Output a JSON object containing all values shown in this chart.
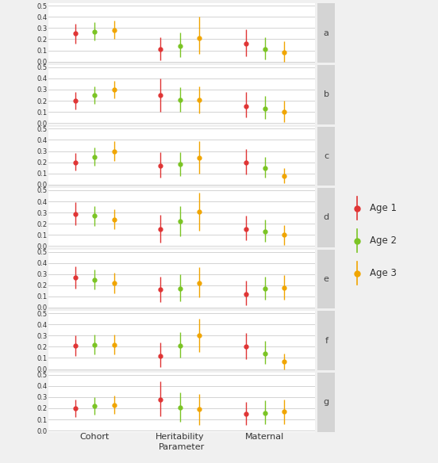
{
  "panels": [
    "a",
    "b",
    "c",
    "d",
    "e",
    "f",
    "g"
  ],
  "x_positions": {
    "Cohort": [
      1,
      1.5,
      2.0
    ],
    "Heritability": [
      3.2,
      3.7,
      4.2
    ],
    "Maternal": [
      5.4,
      5.9,
      6.4
    ]
  },
  "x_ticks": [
    1.5,
    3.7,
    5.9
  ],
  "x_tick_labels": [
    "Cohort",
    "Heritability",
    "Maternal"
  ],
  "ylim": [
    -0.01,
    0.52
  ],
  "yticks": [
    0.0,
    0.1,
    0.2,
    0.3,
    0.4,
    0.5
  ],
  "colors": [
    "#e03535",
    "#7bc424",
    "#f0a500"
  ],
  "age_labels": [
    "Age 1",
    "Age 2",
    "Age 3"
  ],
  "data": {
    "a": {
      "Cohort": {
        "mean": [
          0.25,
          0.27,
          0.28
        ],
        "lo": [
          0.16,
          0.19,
          0.2
        ],
        "hi": [
          0.34,
          0.35,
          0.37
        ]
      },
      "Heritability": {
        "mean": [
          0.11,
          0.14,
          0.21
        ],
        "lo": [
          0.01,
          0.04,
          0.07
        ],
        "hi": [
          0.22,
          0.26,
          0.4
        ]
      },
      "Maternal": {
        "mean": [
          0.16,
          0.11,
          0.08
        ],
        "lo": [
          0.05,
          0.02,
          0.0
        ],
        "hi": [
          0.29,
          0.22,
          0.18
        ]
      }
    },
    "b": {
      "Cohort": {
        "mean": [
          0.2,
          0.25,
          0.3
        ],
        "lo": [
          0.12,
          0.17,
          0.22
        ],
        "hi": [
          0.28,
          0.33,
          0.38
        ]
      },
      "Heritability": {
        "mean": [
          0.25,
          0.21,
          0.21
        ],
        "lo": [
          0.1,
          0.1,
          0.09
        ],
        "hi": [
          0.4,
          0.32,
          0.33
        ]
      },
      "Maternal": {
        "mean": [
          0.15,
          0.13,
          0.1
        ],
        "lo": [
          0.05,
          0.04,
          0.01
        ],
        "hi": [
          0.28,
          0.24,
          0.2
        ]
      }
    },
    "c": {
      "Cohort": {
        "mean": [
          0.2,
          0.25,
          0.3
        ],
        "lo": [
          0.13,
          0.17,
          0.21
        ],
        "hi": [
          0.28,
          0.33,
          0.39
        ]
      },
      "Heritability": {
        "mean": [
          0.17,
          0.18,
          0.24
        ],
        "lo": [
          0.06,
          0.08,
          0.1
        ],
        "hi": [
          0.29,
          0.29,
          0.39
        ]
      },
      "Maternal": {
        "mean": [
          0.2,
          0.15,
          0.08
        ],
        "lo": [
          0.09,
          0.06,
          0.01
        ],
        "hi": [
          0.32,
          0.25,
          0.15
        ]
      }
    },
    "d": {
      "Cohort": {
        "mean": [
          0.29,
          0.27,
          0.24
        ],
        "lo": [
          0.19,
          0.18,
          0.15
        ],
        "hi": [
          0.39,
          0.36,
          0.33
        ]
      },
      "Heritability": {
        "mean": [
          0.15,
          0.22,
          0.31
        ],
        "lo": [
          0.03,
          0.09,
          0.14
        ],
        "hi": [
          0.28,
          0.36,
          0.48
        ]
      },
      "Maternal": {
        "mean": [
          0.15,
          0.13,
          0.1
        ],
        "lo": [
          0.05,
          0.04,
          0.01
        ],
        "hi": [
          0.27,
          0.24,
          0.19
        ]
      }
    },
    "e": {
      "Cohort": {
        "mean": [
          0.27,
          0.25,
          0.22
        ],
        "lo": [
          0.17,
          0.16,
          0.13
        ],
        "hi": [
          0.37,
          0.34,
          0.31
        ]
      },
      "Heritability": {
        "mean": [
          0.16,
          0.17,
          0.22
        ],
        "lo": [
          0.05,
          0.06,
          0.09
        ],
        "hi": [
          0.28,
          0.3,
          0.36
        ]
      },
      "Maternal": {
        "mean": [
          0.12,
          0.17,
          0.18
        ],
        "lo": [
          0.02,
          0.07,
          0.07
        ],
        "hi": [
          0.24,
          0.28,
          0.29
        ]
      }
    },
    "f": {
      "Cohort": {
        "mean": [
          0.21,
          0.22,
          0.22
        ],
        "lo": [
          0.12,
          0.13,
          0.13
        ],
        "hi": [
          0.3,
          0.31,
          0.31
        ]
      },
      "Heritability": {
        "mean": [
          0.12,
          0.21,
          0.3
        ],
        "lo": [
          0.02,
          0.1,
          0.15
        ],
        "hi": [
          0.24,
          0.33,
          0.45
        ]
      },
      "Maternal": {
        "mean": [
          0.2,
          0.14,
          0.07
        ],
        "lo": [
          0.09,
          0.05,
          0.0
        ],
        "hi": [
          0.32,
          0.25,
          0.14
        ]
      }
    },
    "g": {
      "Cohort": {
        "mean": [
          0.2,
          0.22,
          0.23
        ],
        "lo": [
          0.12,
          0.14,
          0.15
        ],
        "hi": [
          0.28,
          0.3,
          0.31
        ]
      },
      "Heritability": {
        "mean": [
          0.28,
          0.21,
          0.19
        ],
        "lo": [
          0.13,
          0.08,
          0.05
        ],
        "hi": [
          0.44,
          0.34,
          0.33
        ]
      },
      "Maternal": {
        "mean": [
          0.15,
          0.16,
          0.17
        ],
        "lo": [
          0.05,
          0.06,
          0.06
        ],
        "hi": [
          0.26,
          0.27,
          0.28
        ]
      }
    }
  },
  "background_color": "#f0f0f0",
  "plot_bg": "#ffffff",
  "grid_color": "#cccccc",
  "panel_label_bg": "#d4d4d4"
}
